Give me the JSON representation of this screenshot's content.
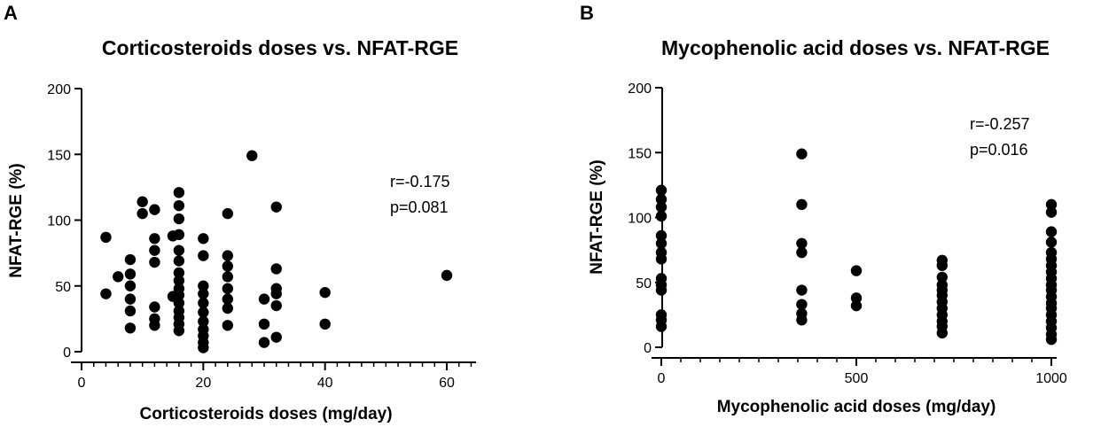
{
  "chart_data": [
    {
      "panel": "A",
      "type": "scatter",
      "title": "Corticosteroids doses vs. NFAT-RGE",
      "xlabel": "Corticosteroids doses (mg/day)",
      "ylabel": "NFAT-RGE (%)",
      "xlim": [
        0,
        65
      ],
      "ylim": [
        0,
        200
      ],
      "xticks": [
        0,
        20,
        40,
        60
      ],
      "yticks": [
        0,
        50,
        100,
        150,
        200
      ],
      "annotation": [
        "r=-0.175",
        "p=0.081"
      ],
      "grid": false,
      "points": [
        [
          4,
          87
        ],
        [
          4,
          44
        ],
        [
          6,
          57
        ],
        [
          8,
          70
        ],
        [
          8,
          59
        ],
        [
          8,
          50
        ],
        [
          8,
          40
        ],
        [
          8,
          31
        ],
        [
          8,
          18
        ],
        [
          10,
          114
        ],
        [
          10,
          105
        ],
        [
          12,
          108
        ],
        [
          12,
          86
        ],
        [
          12,
          77
        ],
        [
          12,
          68
        ],
        [
          12,
          34
        ],
        [
          12,
          25
        ],
        [
          12,
          20
        ],
        [
          15,
          88
        ],
        [
          15,
          42
        ],
        [
          16,
          121
        ],
        [
          16,
          111
        ],
        [
          16,
          101
        ],
        [
          16,
          89
        ],
        [
          16,
          77
        ],
        [
          16,
          69
        ],
        [
          16,
          60
        ],
        [
          16,
          54
        ],
        [
          16,
          48
        ],
        [
          16,
          43
        ],
        [
          16,
          37
        ],
        [
          16,
          31
        ],
        [
          16,
          26
        ],
        [
          16,
          21
        ],
        [
          16,
          16
        ],
        [
          20,
          86
        ],
        [
          20,
          73
        ],
        [
          20,
          50
        ],
        [
          20,
          44
        ],
        [
          20,
          37
        ],
        [
          20,
          30
        ],
        [
          20,
          23
        ],
        [
          20,
          17
        ],
        [
          20,
          12
        ],
        [
          20,
          7
        ],
        [
          20,
          3
        ],
        [
          24,
          105
        ],
        [
          24,
          73
        ],
        [
          24,
          65
        ],
        [
          24,
          57
        ],
        [
          24,
          48
        ],
        [
          24,
          40
        ],
        [
          24,
          33
        ],
        [
          24,
          20
        ],
        [
          28,
          149
        ],
        [
          30,
          40
        ],
        [
          30,
          21
        ],
        [
          30,
          7
        ],
        [
          32,
          110
        ],
        [
          32,
          63
        ],
        [
          32,
          48
        ],
        [
          32,
          44
        ],
        [
          32,
          35
        ],
        [
          32,
          11
        ],
        [
          40,
          45
        ],
        [
          40,
          21
        ],
        [
          60,
          58
        ]
      ]
    },
    {
      "panel": "B",
      "type": "scatter",
      "title": "Mycophenolic acid doses vs. NFAT-RGE",
      "xlabel": "Mycophenolic acid doses (mg/day)",
      "ylabel": "NFAT-RGE (%)",
      "xlim": [
        0,
        1000
      ],
      "ylim": [
        0,
        200
      ],
      "xticks": [
        0,
        500,
        1000
      ],
      "yticks": [
        0,
        50,
        100,
        150,
        200
      ],
      "annotation": [
        "r=-0.257",
        "p=0.016"
      ],
      "grid": false,
      "points": [
        [
          0,
          121
        ],
        [
          0,
          114
        ],
        [
          0,
          108
        ],
        [
          0,
          101
        ],
        [
          0,
          86
        ],
        [
          0,
          80
        ],
        [
          0,
          73
        ],
        [
          0,
          68
        ],
        [
          0,
          53
        ],
        [
          0,
          48
        ],
        [
          0,
          44
        ],
        [
          0,
          25
        ],
        [
          0,
          21
        ],
        [
          0,
          16
        ],
        [
          360,
          149
        ],
        [
          360,
          110
        ],
        [
          360,
          80
        ],
        [
          360,
          73
        ],
        [
          360,
          44
        ],
        [
          360,
          33
        ],
        [
          360,
          26
        ],
        [
          360,
          21
        ],
        [
          500,
          59
        ],
        [
          500,
          38
        ],
        [
          500,
          32
        ],
        [
          720,
          67
        ],
        [
          720,
          63
        ],
        [
          720,
          54
        ],
        [
          720,
          48
        ],
        [
          720,
          44
        ],
        [
          720,
          40
        ],
        [
          720,
          35
        ],
        [
          720,
          30
        ],
        [
          720,
          25
        ],
        [
          720,
          20
        ],
        [
          720,
          16
        ],
        [
          720,
          11
        ],
        [
          1000,
          110
        ],
        [
          1000,
          104
        ],
        [
          1000,
          89
        ],
        [
          1000,
          81
        ],
        [
          1000,
          73
        ],
        [
          1000,
          68
        ],
        [
          1000,
          63
        ],
        [
          1000,
          58
        ],
        [
          1000,
          53
        ],
        [
          1000,
          48
        ],
        [
          1000,
          44
        ],
        [
          1000,
          39
        ],
        [
          1000,
          34
        ],
        [
          1000,
          30
        ],
        [
          1000,
          25
        ],
        [
          1000,
          20
        ],
        [
          1000,
          15
        ],
        [
          1000,
          10
        ],
        [
          1000,
          6
        ]
      ]
    }
  ]
}
